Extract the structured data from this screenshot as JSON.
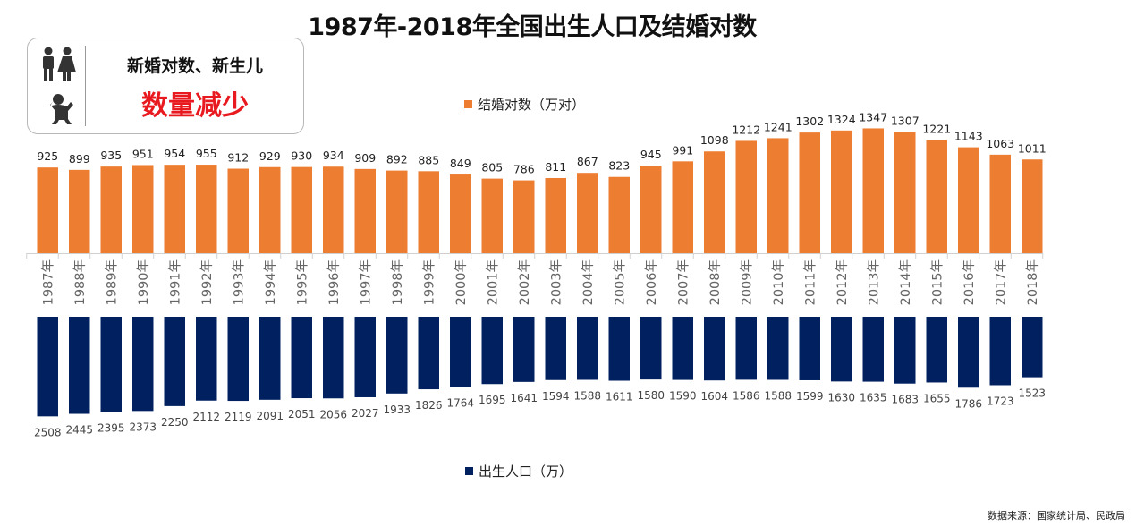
{
  "title": "1987年-2018年全国出生人口及结婚对数",
  "callout": {
    "line1": "新婚对数、新生儿",
    "line2": "数量减少",
    "icons": [
      "couple-icon",
      "baby-icon"
    ]
  },
  "source": "数据来源：国家统计局、民政局",
  "colors": {
    "marriages": "#ed7d31",
    "births": "#002060",
    "emphasis": "#e8191f"
  },
  "chart_data": {
    "type": "bar",
    "categories": [
      "1987年",
      "1988年",
      "1989年",
      "1990年",
      "1991年",
      "1992年",
      "1993年",
      "1994年",
      "1995年",
      "1996年",
      "1997年",
      "1998年",
      "1999年",
      "2000年",
      "2001年",
      "2002年",
      "2003年",
      "2004年",
      "2005年",
      "2006年",
      "2007年",
      "2008年",
      "2009年",
      "2010年",
      "2011年",
      "2012年",
      "2013年",
      "2014年",
      "2015年",
      "2016年",
      "2017年",
      "2018年"
    ],
    "series": [
      {
        "name": "结婚对数（万对）",
        "direction": "up",
        "values": [
          925,
          899,
          935,
          951,
          954,
          955,
          912,
          929,
          930,
          934,
          909,
          892,
          885,
          849,
          805,
          786,
          811,
          867,
          823,
          945,
          991,
          1098,
          1212,
          1241,
          1302,
          1324,
          1347,
          1307,
          1221,
          1143,
          1063,
          1011
        ]
      },
      {
        "name": "出生人口（万）",
        "direction": "down",
        "values": [
          2508,
          2445,
          2395,
          2373,
          2250,
          2112,
          2119,
          2091,
          2051,
          2056,
          2027,
          1933,
          1826,
          1764,
          1695,
          1641,
          1594,
          1588,
          1611,
          1580,
          1590,
          1604,
          1586,
          1588,
          1599,
          1630,
          1635,
          1683,
          1655,
          1786,
          1723,
          1523
        ]
      }
    ],
    "legend": [
      "结婚对数（万对）",
      "出生人口（万）"
    ]
  }
}
